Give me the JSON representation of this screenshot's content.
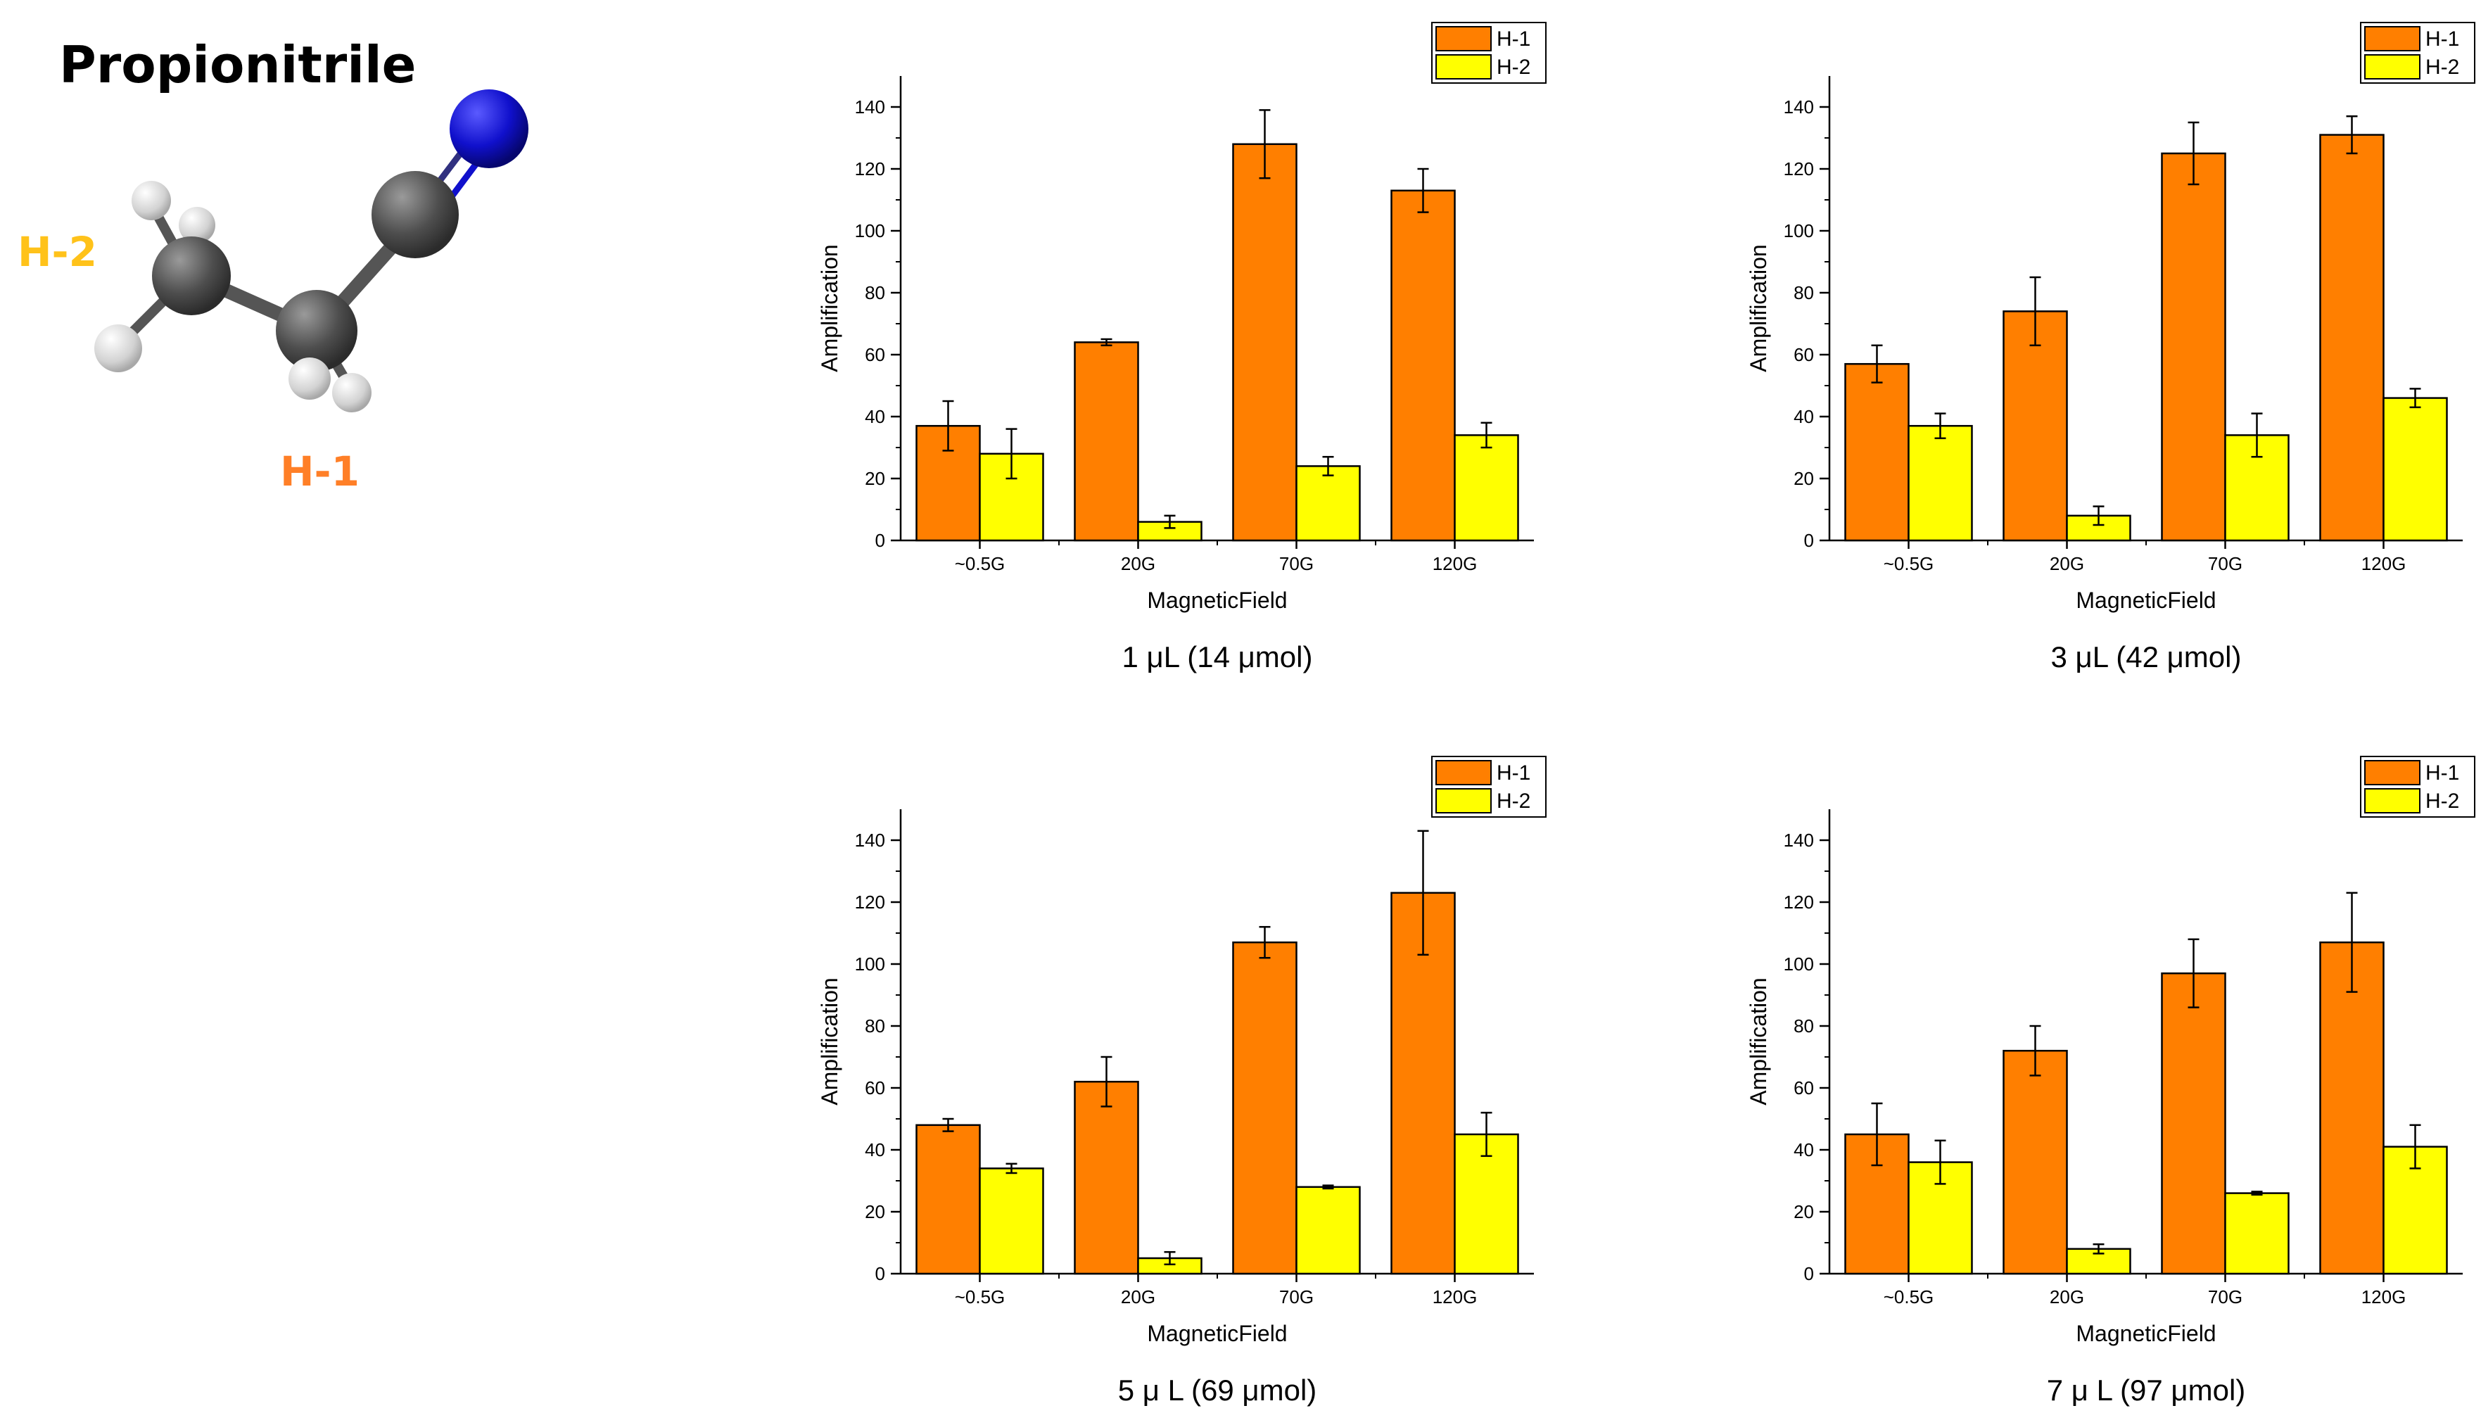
{
  "molecule": {
    "name": "Propionitrile",
    "label_h2": "H-2",
    "label_h1": "H-1",
    "colors": {
      "h1": "#FF7F27",
      "h2": "#FFC21A",
      "carbon": "#555555",
      "hydrogen": "#DDDDDD",
      "nitrogen": "#1010CC"
    }
  },
  "chart_data": [
    {
      "type": "bar",
      "caption": "1 μL (14 μmol)",
      "xlabel": "MagneticField",
      "ylabel": "Amplification",
      "categories": [
        "~0.5G",
        "20G",
        "70G",
        "120G"
      ],
      "ylim": [
        0,
        150
      ],
      "yticks": [
        0,
        20,
        40,
        60,
        80,
        100,
        120,
        140
      ],
      "legend_position": "top-right",
      "series": [
        {
          "name": "H-1",
          "color": "#FF7F00",
          "values": [
            37,
            64,
            128,
            113
          ],
          "errors": [
            8,
            1,
            11,
            7
          ]
        },
        {
          "name": "H-2",
          "color": "#FFFF00",
          "values": [
            28,
            6,
            24,
            34
          ],
          "errors": [
            8,
            2,
            3,
            4
          ]
        }
      ]
    },
    {
      "type": "bar",
      "caption": "3 μL (42 μmol)",
      "xlabel": "MagneticField",
      "ylabel": "Amplification",
      "categories": [
        "~0.5G",
        "20G",
        "70G",
        "120G"
      ],
      "ylim": [
        0,
        150
      ],
      "yticks": [
        0,
        20,
        40,
        60,
        80,
        100,
        120,
        140
      ],
      "legend_position": "top-right",
      "series": [
        {
          "name": "H-1",
          "color": "#FF7F00",
          "values": [
            57,
            74,
            125,
            131
          ],
          "errors": [
            6,
            11,
            10,
            6
          ]
        },
        {
          "name": "H-2",
          "color": "#FFFF00",
          "values": [
            37,
            8,
            34,
            46
          ],
          "errors": [
            4,
            3,
            7,
            3
          ]
        }
      ]
    },
    {
      "type": "bar",
      "caption": "5 μ L (69 μmol)",
      "xlabel": "MagneticField",
      "ylabel": "Amplification",
      "categories": [
        "~0.5G",
        "20G",
        "70G",
        "120G"
      ],
      "ylim": [
        0,
        150
      ],
      "yticks": [
        0,
        20,
        40,
        60,
        80,
        100,
        120,
        140
      ],
      "legend_position": "top-right",
      "series": [
        {
          "name": "H-1",
          "color": "#FF7F00",
          "values": [
            48,
            62,
            107,
            123
          ],
          "errors": [
            2,
            8,
            5,
            20
          ]
        },
        {
          "name": "H-2",
          "color": "#FFFF00",
          "values": [
            34,
            5,
            28,
            45
          ],
          "errors": [
            1.5,
            2,
            0.5,
            7
          ]
        }
      ]
    },
    {
      "type": "bar",
      "caption": "7 μ L (97 μmol)",
      "xlabel": "MagneticField",
      "ylabel": "Amplification",
      "categories": [
        "~0.5G",
        "20G",
        "70G",
        "120G"
      ],
      "ylim": [
        0,
        150
      ],
      "yticks": [
        0,
        20,
        40,
        60,
        80,
        100,
        120,
        140
      ],
      "legend_position": "top-right",
      "series": [
        {
          "name": "H-1",
          "color": "#FF7F00",
          "values": [
            45,
            72,
            97,
            107
          ],
          "errors": [
            10,
            8,
            11,
            16
          ]
        },
        {
          "name": "H-2",
          "color": "#FFFF00",
          "values": [
            36,
            8,
            26,
            41
          ],
          "errors": [
            7,
            1.5,
            0.5,
            7
          ]
        }
      ]
    }
  ]
}
